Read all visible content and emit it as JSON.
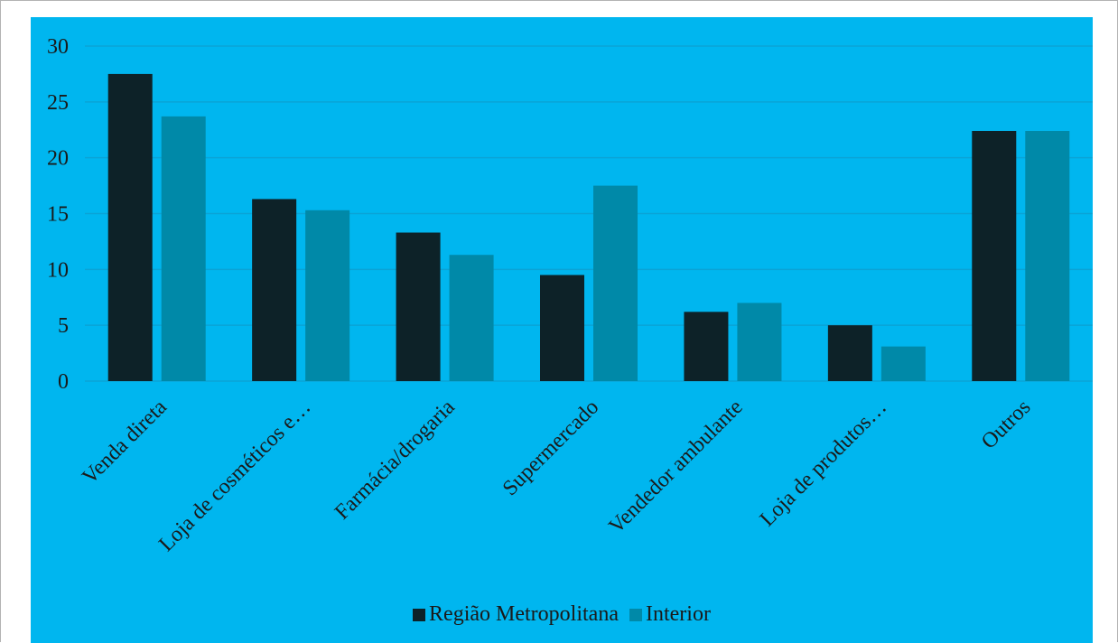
{
  "chart_data": {
    "type": "bar",
    "categories": [
      "Venda direta",
      "Loja de cosméticos e…",
      "Farmácia/drogaria",
      "Supermercado",
      "Vendedor ambulante",
      "Loja de produtos…",
      "Outros"
    ],
    "series": [
      {
        "name": "Região Metropolitana",
        "color": "#0d2228",
        "values": [
          27.5,
          16.3,
          13.3,
          9.5,
          6.2,
          5.0,
          22.4
        ]
      },
      {
        "name": "Interior",
        "color": "#0089a8",
        "values": [
          23.7,
          15.3,
          11.3,
          17.5,
          7.0,
          3.1,
          22.4
        ]
      }
    ],
    "title": "",
    "xlabel": "",
    "ylabel": "",
    "ylim": [
      0,
      30
    ],
    "yticks": [
      0,
      5,
      10,
      15,
      20,
      25,
      30
    ],
    "grid": true,
    "legend_position": "bottom",
    "plot_background": "#00b6ef",
    "grid_color": "#0aa3d6"
  }
}
